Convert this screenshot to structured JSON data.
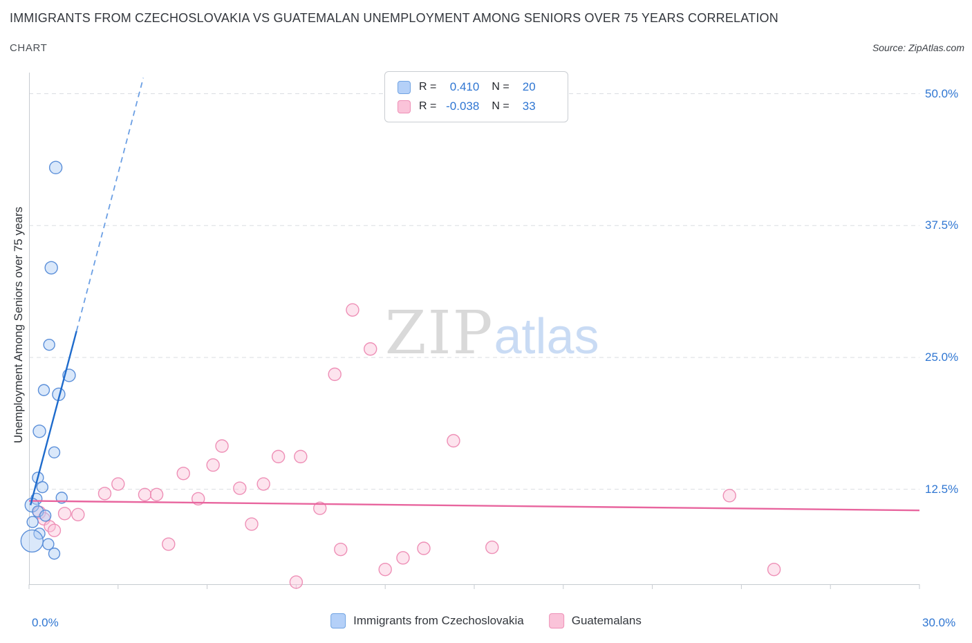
{
  "header": {
    "title": "IMMIGRANTS FROM CZECHOSLOVAKIA VS GUATEMALAN UNEMPLOYMENT AMONG SENIORS OVER 75 YEARS CORRELATION",
    "subtitle": "CHART",
    "source": "Source: ZipAtlas.com"
  },
  "watermark": {
    "zip": "ZIP",
    "atlas": "atlas"
  },
  "legend_box": {
    "rows": [
      {
        "r_label": "R =",
        "r_value": "0.410",
        "n_label": "N =",
        "n_value": "20",
        "swatch_fill": "#b4d0f8",
        "swatch_border": "#70a3e2"
      },
      {
        "r_label": "R =",
        "r_value": "-0.038",
        "n_label": "N =",
        "n_value": "33",
        "swatch_fill": "#fac3d9",
        "swatch_border": "#ee8fb6"
      }
    ]
  },
  "axes": {
    "y_label": "Unemployment Among Seniors over 75 years",
    "y_ticks": [
      {
        "value": 50,
        "label": "50.0%"
      },
      {
        "value": 37.5,
        "label": "37.5%"
      },
      {
        "value": 25,
        "label": "25.0%"
      },
      {
        "value": 12.5,
        "label": "12.5%"
      }
    ],
    "x_ticks": [
      {
        "value": 0,
        "label": "0.0%"
      },
      {
        "value": 30,
        "label": "30.0%"
      }
    ],
    "tick_label_color": "#2f76d2",
    "grid_color": "#dadde1",
    "axis_color": "#c6cbd0"
  },
  "bottom_legend": [
    {
      "label": "Immigrants from Czechoslovakia"
    },
    {
      "label": "Guatemalans"
    }
  ],
  "chart_data": {
    "type": "scatter",
    "title": "Immigrants from Czechoslovakia vs Guatemalan Unemployment Among Seniors over 75 years Correlation",
    "xlabel": "Immigrants from Czechoslovakia (%)",
    "ylabel": "Unemployment Among Seniors over 75 years (%)",
    "xlim": [
      0,
      30
    ],
    "ylim": [
      3.5,
      52
    ],
    "grid": true,
    "series": [
      {
        "id": "czechoslovakia",
        "name": "Immigrants from Czechoslovakia",
        "R": 0.41,
        "N": 20,
        "fill": "#aecbf5",
        "stroke": "#5b8fd9",
        "points": [
          [
            0.9,
            43.0,
            9
          ],
          [
            0.75,
            33.5,
            9
          ],
          [
            0.68,
            26.2,
            8
          ],
          [
            1.35,
            23.3,
            9
          ],
          [
            0.5,
            21.9,
            8
          ],
          [
            1.0,
            21.5,
            9
          ],
          [
            0.35,
            18.0,
            9
          ],
          [
            0.85,
            16.0,
            8
          ],
          [
            0.3,
            13.6,
            8
          ],
          [
            0.45,
            12.7,
            8
          ],
          [
            0.25,
            11.6,
            8
          ],
          [
            0.1,
            11.0,
            10
          ],
          [
            1.1,
            11.7,
            8
          ],
          [
            0.3,
            10.4,
            8
          ],
          [
            0.55,
            10.0,
            8
          ],
          [
            0.12,
            9.4,
            8
          ],
          [
            0.35,
            8.3,
            8
          ],
          [
            0.1,
            7.6,
            16
          ],
          [
            0.65,
            7.3,
            8
          ],
          [
            0.85,
            6.4,
            8
          ]
        ],
        "trend": {
          "solid": [
            0.05,
            11.0,
            1.6,
            27.5
          ],
          "dashed": [
            1.6,
            27.5,
            3.85,
            51.5
          ],
          "color": "#1e6bcc",
          "dash_color": "#6b9fe4"
        }
      },
      {
        "id": "guatemalans",
        "name": "Guatemalans",
        "R": -0.038,
        "N": 33,
        "fill": "#fac3d9",
        "stroke": "#ee8fb6",
        "points": [
          [
            10.9,
            29.5,
            9
          ],
          [
            11.5,
            25.8,
            9
          ],
          [
            10.3,
            23.4,
            9
          ],
          [
            14.3,
            17.1,
            9
          ],
          [
            6.5,
            16.6,
            9
          ],
          [
            8.4,
            15.6,
            9
          ],
          [
            9.15,
            15.6,
            9
          ],
          [
            6.2,
            14.8,
            9
          ],
          [
            5.2,
            14.0,
            9
          ],
          [
            3.0,
            13.0,
            9
          ],
          [
            7.9,
            13.0,
            9
          ],
          [
            7.1,
            12.6,
            9
          ],
          [
            2.55,
            12.1,
            9
          ],
          [
            3.9,
            12.0,
            9
          ],
          [
            4.3,
            12.0,
            9
          ],
          [
            5.7,
            11.6,
            9
          ],
          [
            23.6,
            11.9,
            9
          ],
          [
            9.8,
            10.7,
            9
          ],
          [
            0.35,
            10.3,
            9
          ],
          [
            1.2,
            10.2,
            9
          ],
          [
            1.65,
            10.1,
            9
          ],
          [
            0.5,
            9.7,
            9
          ],
          [
            0.7,
            9.0,
            8
          ],
          [
            7.5,
            9.2,
            9
          ],
          [
            0.85,
            8.6,
            9
          ],
          [
            4.7,
            7.3,
            9
          ],
          [
            10.5,
            6.8,
            9
          ],
          [
            13.3,
            6.9,
            9
          ],
          [
            15.6,
            7.0,
            9
          ],
          [
            12.6,
            6.0,
            9
          ],
          [
            12.0,
            4.9,
            9
          ],
          [
            25.1,
            4.9,
            9
          ],
          [
            9.0,
            3.7,
            9
          ]
        ],
        "trend": {
          "solid": [
            0.0,
            11.4,
            30.0,
            10.5
          ],
          "color": "#e8659e"
        }
      }
    ]
  }
}
